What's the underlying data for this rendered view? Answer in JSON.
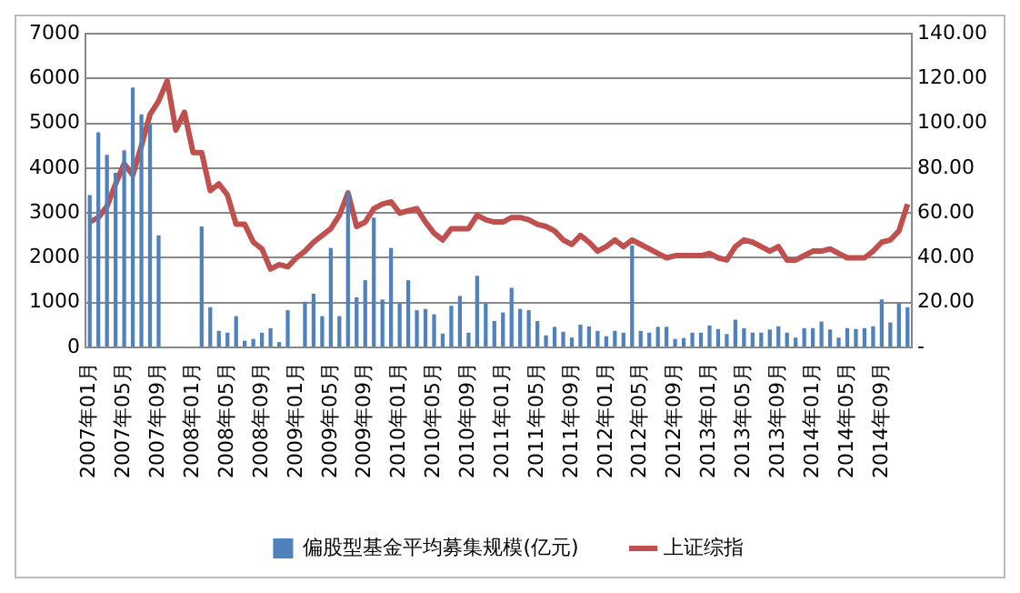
{
  "chart_data": {
    "type": "bar",
    "categories": [
      "2007年01月",
      null,
      null,
      null,
      "2007年05月",
      null,
      null,
      null,
      "2007年09月",
      null,
      null,
      null,
      "2008年01月",
      null,
      null,
      null,
      "2008年05月",
      null,
      null,
      null,
      "2008年09月",
      null,
      null,
      null,
      "2009年01月",
      null,
      null,
      null,
      "2009年05月",
      null,
      null,
      null,
      "2009年09月",
      null,
      null,
      null,
      "2010年01月",
      null,
      null,
      null,
      "2010年05月",
      null,
      null,
      null,
      "2010年09月",
      null,
      null,
      null,
      "2011年01月",
      null,
      null,
      null,
      "2011年05月",
      null,
      null,
      null,
      "2011年09月",
      null,
      null,
      null,
      "2012年01月",
      null,
      null,
      null,
      "2012年05月",
      null,
      null,
      null,
      "2012年09月",
      null,
      null,
      null,
      "2013年01月",
      null,
      null,
      null,
      "2013年05月",
      null,
      null,
      null,
      "2013年09月",
      null,
      null,
      null,
      "2014年01月",
      null,
      null,
      null,
      "2014年05月",
      null,
      null,
      null,
      "2014年09月",
      null,
      null,
      null
    ],
    "series": [
      {
        "name": "偏股型基金平均募集规模(亿元)",
        "color": "#4f81bd",
        "values": [
          3400,
          4800,
          4300,
          3900,
          4400,
          5800,
          5200,
          5000,
          2500,
          0,
          0,
          0,
          0,
          2700,
          900,
          370,
          330,
          700,
          150,
          190,
          330,
          430,
          120,
          830,
          0,
          1020,
          1200,
          700,
          2220,
          700,
          3460,
          1120,
          1500,
          2900,
          1070,
          2220,
          990,
          1500,
          830,
          860,
          740,
          310,
          930,
          1150,
          330,
          1600,
          980,
          590,
          780,
          1330,
          860,
          830,
          590,
          270,
          460,
          350,
          220,
          510,
          470,
          370,
          250,
          370,
          330,
          2280,
          370,
          330,
          460,
          460,
          190,
          210,
          330,
          330,
          490,
          410,
          300,
          620,
          430,
          330,
          330,
          400,
          470,
          330,
          220,
          430,
          430,
          580,
          400,
          220,
          430,
          410,
          430,
          470,
          1070,
          560,
          990,
          900
        ]
      },
      {
        "name": "上证综指",
        "type": "line",
        "axis": "y2",
        "color": "#c0504d",
        "values": [
          56,
          58,
          63,
          73,
          82,
          77,
          90,
          104,
          110,
          119,
          97,
          105,
          87,
          87,
          70,
          73,
          68,
          55,
          55,
          47,
          44,
          35,
          37,
          36,
          40,
          43,
          47,
          50,
          53,
          59,
          69,
          54,
          56,
          62,
          64,
          65,
          60,
          61,
          62,
          56,
          51,
          48,
          53,
          53,
          53,
          59,
          57,
          56,
          56,
          58,
          58,
          57,
          55,
          54,
          52,
          48,
          46,
          50,
          47,
          43,
          45,
          48,
          45,
          48,
          46,
          44,
          42,
          40,
          41,
          41,
          41,
          41,
          42,
          40,
          39,
          45,
          48,
          47,
          45,
          43,
          45,
          39,
          39,
          41,
          43,
          43,
          44,
          42,
          40,
          40,
          40,
          43,
          47,
          48,
          52,
          64
        ]
      }
    ],
    "ylim": [
      0,
      7000
    ],
    "yticks": [
      0,
      1000,
      2000,
      3000,
      4000,
      5000,
      6000,
      7000
    ],
    "y2lim": [
      0,
      140
    ],
    "y2ticks": [
      {
        "value": 0,
        "label": "-"
      },
      {
        "value": 20,
        "label": "20.00"
      },
      {
        "value": 40,
        "label": "40.00"
      },
      {
        "value": 60,
        "label": "60.00"
      },
      {
        "value": 80,
        "label": "80.00"
      },
      {
        "value": 100,
        "label": "100.00"
      },
      {
        "value": 120,
        "label": "120.00"
      },
      {
        "value": 140,
        "label": "140.00"
      }
    ],
    "grid": "y",
    "legend": "bottom",
    "marker": "none",
    "line_style": "solid"
  }
}
